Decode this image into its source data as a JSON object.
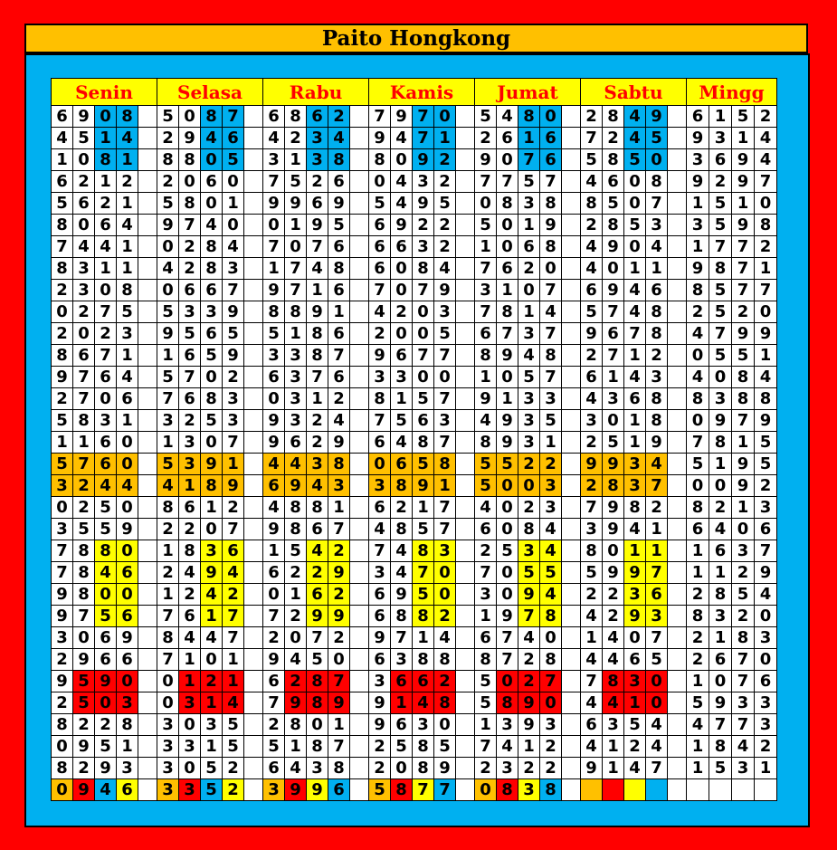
{
  "title": "Paito Hongkong",
  "days": [
    "Senin",
    "Selasa",
    "Rabu",
    "Kamis",
    "Jumat",
    "Sabtu",
    "Mingg"
  ],
  "colors": {
    "blue": "#00b0f0",
    "orange": "#ffc000",
    "yellow": "#ffff00",
    "red": "#ff0000",
    "white": "#ffffff"
  },
  "rows": [
    [
      "6908",
      "5087",
      "6862",
      "7970",
      "5480",
      "2849",
      "6152"
    ],
    [
      "4514",
      "2946",
      "4234",
      "9471",
      "2616",
      "7245",
      "9314"
    ],
    [
      "1081",
      "8805",
      "3138",
      "8092",
      "9076",
      "5850",
      "3694"
    ],
    [
      "6212",
      "2060",
      "7526",
      "0432",
      "7757",
      "4608",
      "9297"
    ],
    [
      "5621",
      "5801",
      "9969",
      "5495",
      "0838",
      "8507",
      "1510"
    ],
    [
      "8064",
      "9740",
      "0195",
      "6922",
      "5019",
      "2853",
      "3598"
    ],
    [
      "7441",
      "0284",
      "7076",
      "6632",
      "1068",
      "4904",
      "1772"
    ],
    [
      "8311",
      "4283",
      "1748",
      "6084",
      "7620",
      "4011",
      "9871"
    ],
    [
      "2308",
      "0667",
      "9716",
      "7079",
      "3107",
      "6946",
      "8577"
    ],
    [
      "0275",
      "5339",
      "8891",
      "4203",
      "7814",
      "5748",
      "2520"
    ],
    [
      "2023",
      "9565",
      "5186",
      "2005",
      "6737",
      "9678",
      "4799"
    ],
    [
      "8671",
      "1659",
      "3387",
      "9677",
      "8948",
      "2712",
      "0551"
    ],
    [
      "9764",
      "5702",
      "6376",
      "3300",
      "1057",
      "6143",
      "4084"
    ],
    [
      "2706",
      "7683",
      "0312",
      "8157",
      "9133",
      "4368",
      "8388"
    ],
    [
      "5831",
      "3253",
      "9324",
      "7563",
      "4935",
      "3018",
      "0979"
    ],
    [
      "1160",
      "1307",
      "9629",
      "6487",
      "8931",
      "2519",
      "7815"
    ],
    [
      "5760",
      "5391",
      "4438",
      "0658",
      "5522",
      "9934",
      "5195"
    ],
    [
      "3244",
      "4189",
      "6943",
      "3891",
      "5003",
      "2837",
      "0092"
    ],
    [
      "0250",
      "8612",
      "4881",
      "6217",
      "4023",
      "7982",
      "8213"
    ],
    [
      "3559",
      "2207",
      "9867",
      "4857",
      "6084",
      "3941",
      "6406"
    ],
    [
      "7880",
      "1836",
      "1542",
      "7483",
      "2534",
      "8011",
      "1637"
    ],
    [
      "7846",
      "2494",
      "6229",
      "3470",
      "7055",
      "5997",
      "1129"
    ],
    [
      "9800",
      "1242",
      "0162",
      "6950",
      "3094",
      "2236",
      "2854"
    ],
    [
      "9756",
      "7617",
      "7299",
      "6882",
      "1978",
      "4293",
      "8320"
    ],
    [
      "3069",
      "8447",
      "2072",
      "9714",
      "6740",
      "1407",
      "2183"
    ],
    [
      "2966",
      "7101",
      "9450",
      "6388",
      "8728",
      "4465",
      "2670"
    ],
    [
      "9590",
      "0121",
      "6287",
      "3662",
      "5027",
      "7830",
      "1076"
    ],
    [
      "2503",
      "0314",
      "7989",
      "9148",
      "5890",
      "4410",
      "5933"
    ],
    [
      "8228",
      "3035",
      "2801",
      "9630",
      "1393",
      "6354",
      "4773"
    ],
    [
      "0951",
      "3315",
      "5187",
      "2585",
      "7412",
      "4124",
      "1842"
    ],
    [
      "8293",
      "3052",
      "6438",
      "2089",
      "2322",
      "9147",
      "1531"
    ],
    [
      "0946",
      "3352",
      "3996",
      "5877",
      "0838",
      "",
      ""
    ]
  ],
  "highlights": [
    {
      "color": "blue",
      "rows": [
        0,
        1,
        2
      ],
      "digits": [
        2,
        3
      ],
      "days": [
        0,
        1,
        2,
        3,
        4,
        5
      ]
    },
    {
      "color": "orange",
      "rows": [
        16,
        17
      ],
      "digits": [
        0,
        1,
        2,
        3
      ],
      "days": [
        0,
        1,
        2,
        3,
        4,
        5
      ]
    },
    {
      "color": "yellow",
      "rows": [
        20,
        21,
        22,
        23
      ],
      "digits": [
        2,
        3
      ],
      "days": [
        0,
        1,
        2,
        3,
        4,
        5
      ]
    },
    {
      "color": "red",
      "rows": [
        26,
        27
      ],
      "digits": [
        1,
        2,
        3
      ],
      "days": [
        0,
        1,
        2,
        3,
        4,
        5
      ]
    }
  ],
  "last_row_colors": [
    [
      "orange",
      "red",
      "blue",
      "yellow"
    ],
    [
      "orange",
      "red",
      "blue",
      "yellow"
    ],
    [
      "orange",
      "red",
      "yellow",
      "blue"
    ],
    [
      "orange",
      "red",
      "yellow",
      "blue"
    ],
    [
      "orange",
      "red",
      "yellow",
      "blue"
    ],
    [
      "orange",
      "red",
      "yellow",
      "blue"
    ],
    [
      "white",
      "white",
      "white",
      "white"
    ]
  ]
}
